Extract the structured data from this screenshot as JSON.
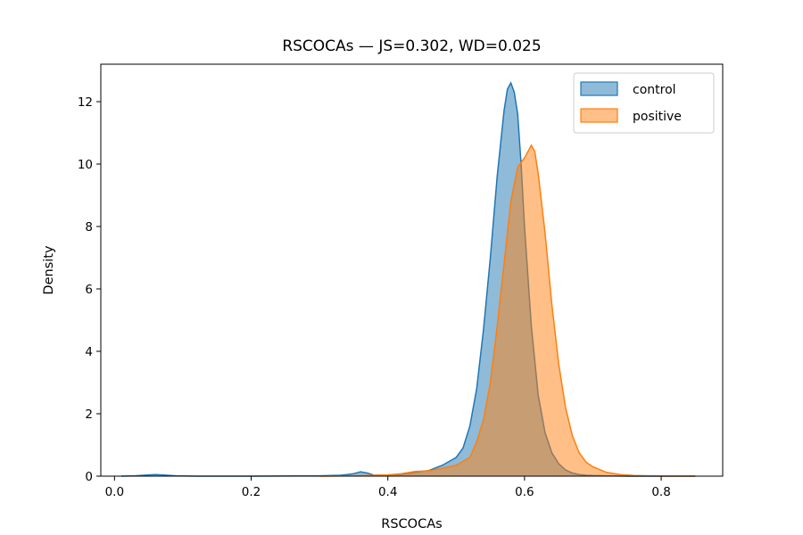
{
  "chart_data": {
    "type": "area",
    "title": "RSCOCAs — JS=0.302, WD=0.025",
    "xlabel": "RSCOCAs",
    "ylabel": "Density",
    "xlim": [
      -0.02,
      0.89
    ],
    "ylim": [
      0,
      13.2
    ],
    "x_ticks": [
      0.0,
      0.2,
      0.4,
      0.6,
      0.8
    ],
    "x_tick_labels": [
      "0.0",
      "0.2",
      "0.4",
      "0.6",
      "0.8"
    ],
    "y_ticks": [
      0,
      2,
      4,
      6,
      8,
      10,
      12
    ],
    "y_tick_labels": [
      "0",
      "2",
      "4",
      "6",
      "8",
      "10",
      "12"
    ],
    "grid": false,
    "legend_position": "top-right",
    "series": [
      {
        "name": "control",
        "color": "#1f77b4",
        "fill_opacity": 0.5,
        "x": [
          0.01,
          0.03,
          0.05,
          0.06,
          0.07,
          0.09,
          0.12,
          0.2,
          0.3,
          0.33,
          0.34,
          0.35,
          0.36,
          0.37,
          0.38,
          0.4,
          0.42,
          0.44,
          0.46,
          0.48,
          0.5,
          0.51,
          0.52,
          0.53,
          0.54,
          0.55,
          0.56,
          0.57,
          0.575,
          0.58,
          0.585,
          0.59,
          0.595,
          0.6,
          0.61,
          0.62,
          0.63,
          0.64,
          0.65,
          0.66,
          0.67,
          0.68,
          0.69,
          0.7,
          0.72,
          0.75,
          0.85
        ],
        "y": [
          0.0,
          0.01,
          0.04,
          0.05,
          0.04,
          0.01,
          0.0,
          0.0,
          0.01,
          0.03,
          0.05,
          0.08,
          0.14,
          0.1,
          0.03,
          0.04,
          0.06,
          0.12,
          0.18,
          0.35,
          0.6,
          0.9,
          1.6,
          2.8,
          4.7,
          7.0,
          9.6,
          11.7,
          12.4,
          12.6,
          12.3,
          11.6,
          10.0,
          8.0,
          4.8,
          2.6,
          1.4,
          0.75,
          0.4,
          0.2,
          0.1,
          0.05,
          0.03,
          0.02,
          0.01,
          0.0,
          0.0
        ]
      },
      {
        "name": "positive",
        "color": "#ff7f0e",
        "fill_opacity": 0.5,
        "x": [
          0.3,
          0.35,
          0.4,
          0.42,
          0.44,
          0.46,
          0.48,
          0.5,
          0.52,
          0.53,
          0.54,
          0.55,
          0.56,
          0.57,
          0.58,
          0.59,
          0.6,
          0.605,
          0.61,
          0.615,
          0.62,
          0.63,
          0.64,
          0.65,
          0.66,
          0.67,
          0.68,
          0.69,
          0.7,
          0.72,
          0.74,
          0.76,
          0.8,
          0.85
        ],
        "y": [
          0.0,
          0.01,
          0.04,
          0.08,
          0.15,
          0.17,
          0.25,
          0.35,
          0.6,
          1.1,
          1.8,
          3.0,
          4.8,
          6.8,
          8.8,
          9.9,
          10.2,
          10.4,
          10.6,
          10.4,
          9.7,
          7.8,
          5.5,
          3.6,
          2.2,
          1.3,
          0.75,
          0.45,
          0.3,
          0.12,
          0.05,
          0.02,
          0.0,
          0.0
        ]
      }
    ]
  }
}
